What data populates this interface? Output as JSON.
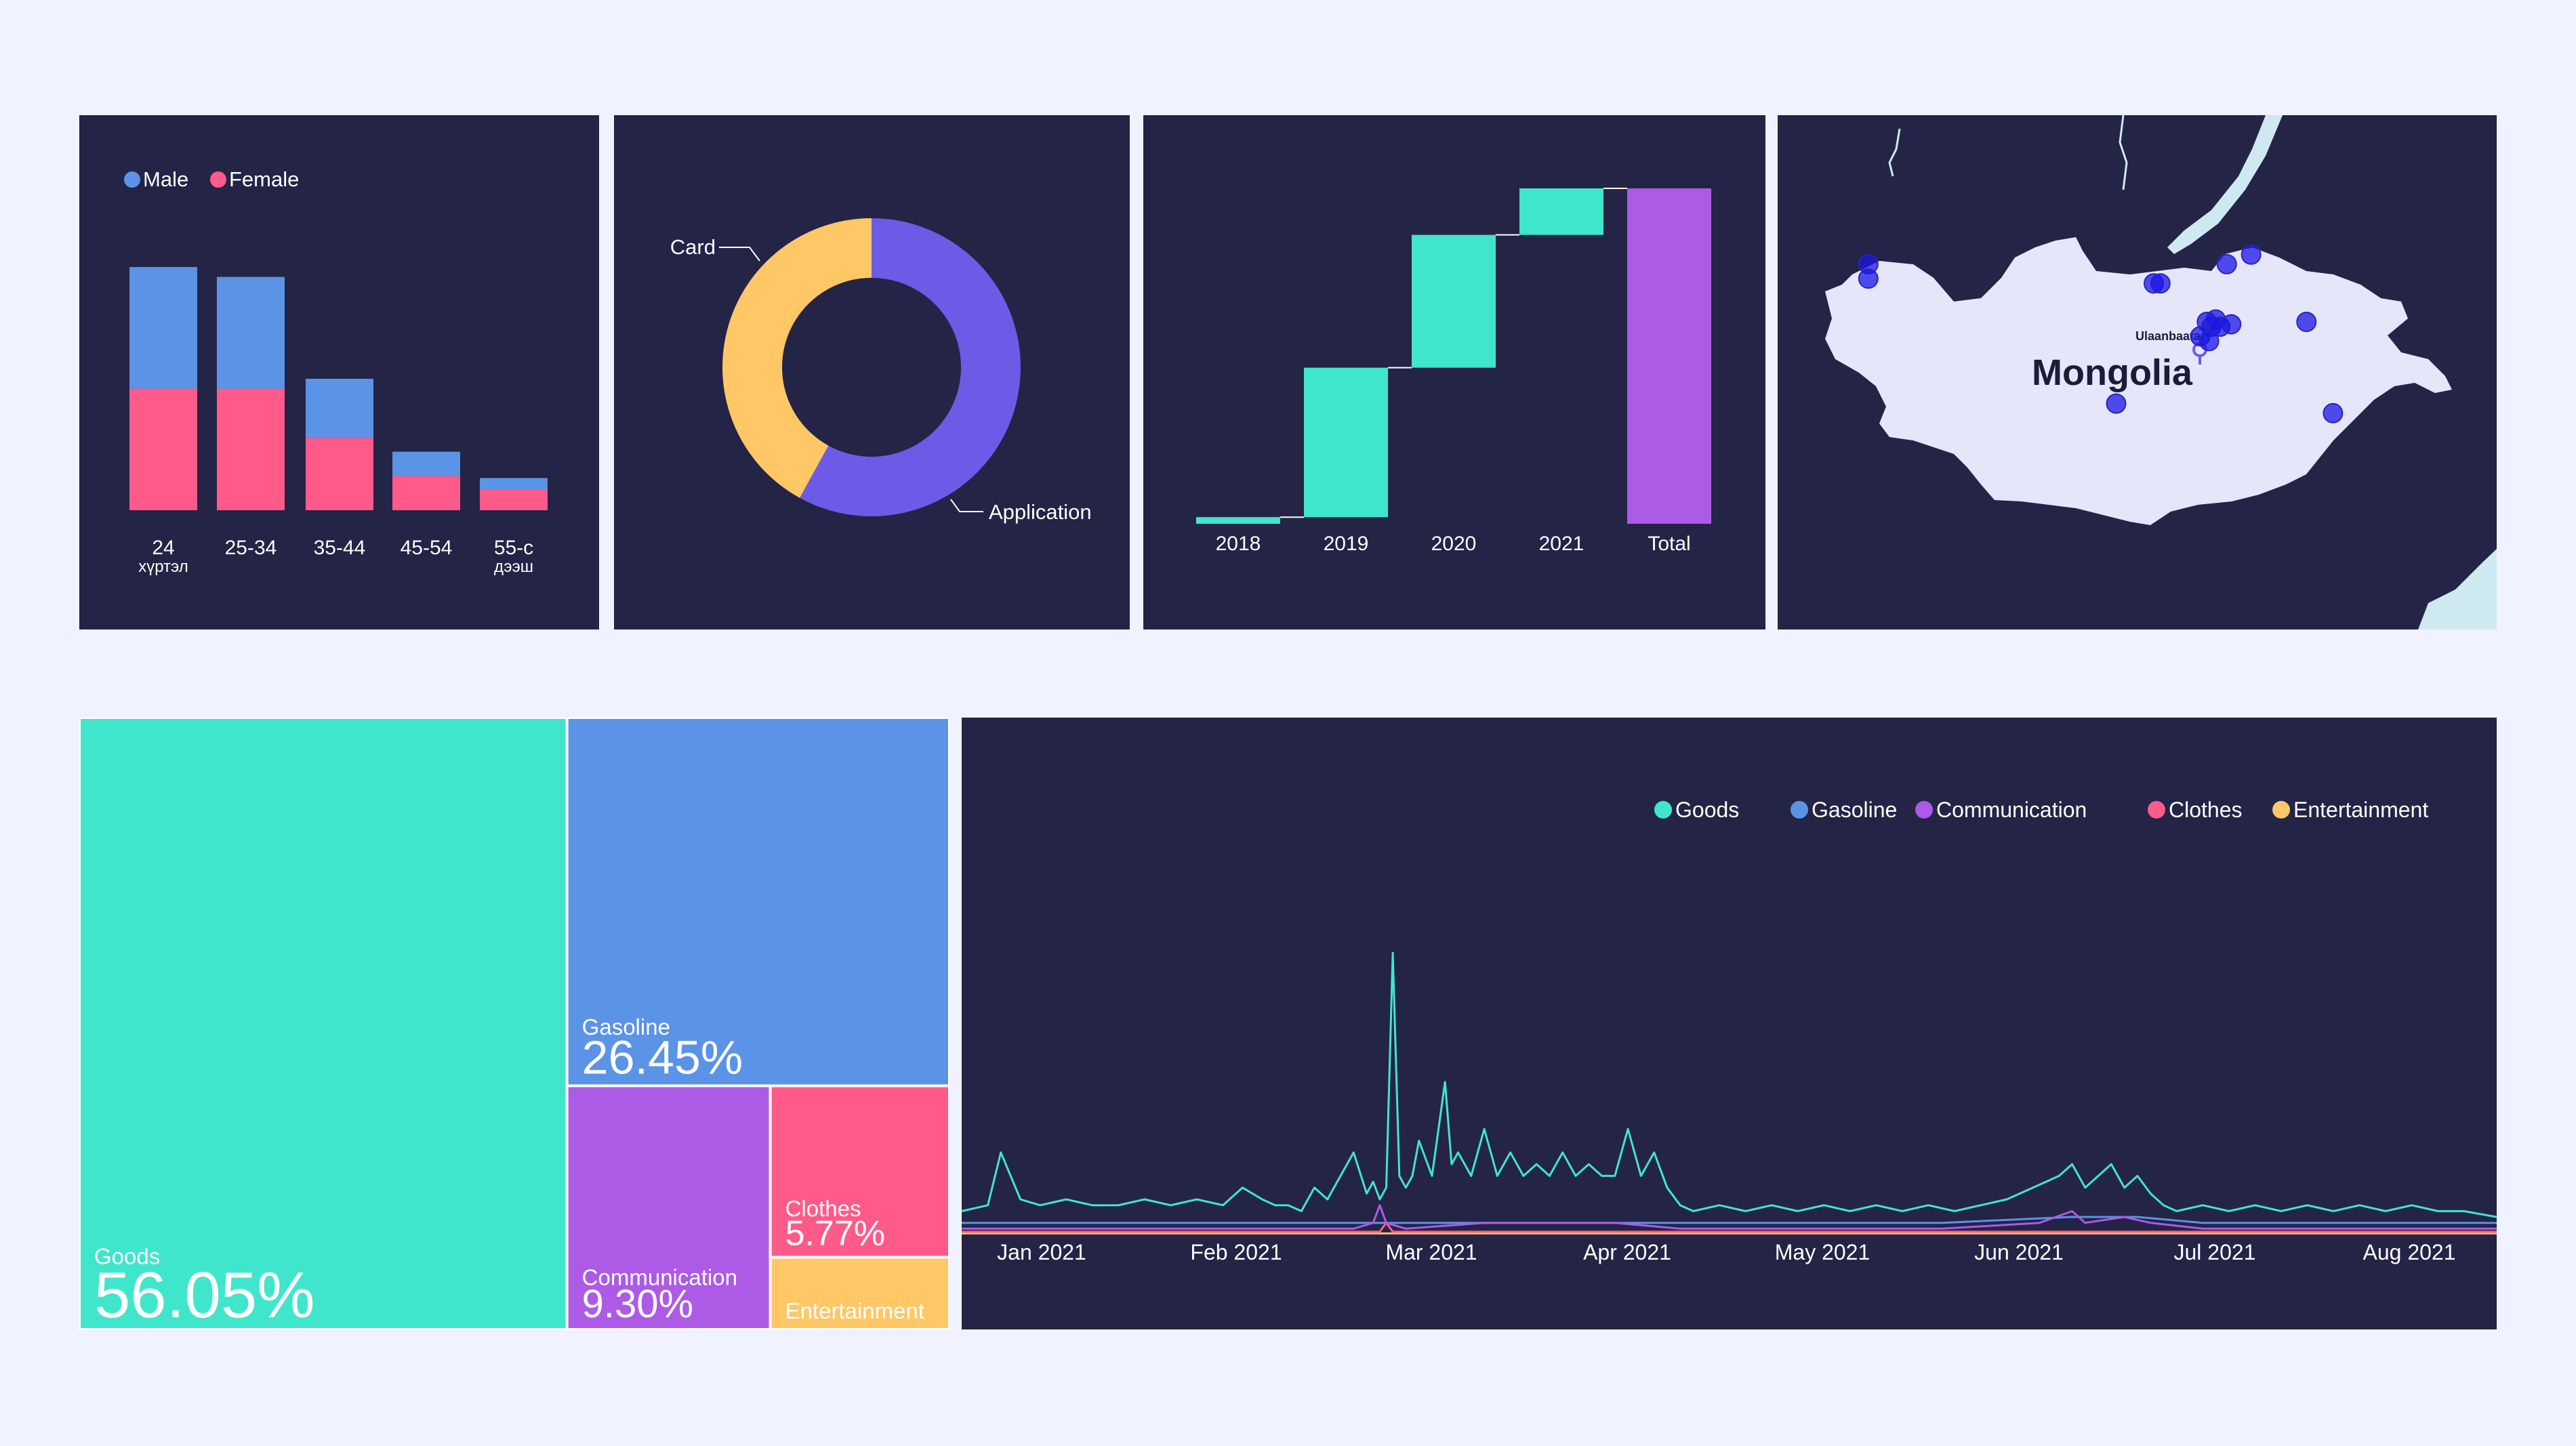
{
  "colors": {
    "panel_bg": "#242447",
    "page_bg": "#f0f2ff",
    "male": "#5b93e6",
    "female": "#ff5a8a",
    "card": "#ffc766",
    "application": "#6b5be6",
    "waterfall_increase": "#40e6cb",
    "waterfall_total": "#ad5ae6",
    "goods": "#40e6cb",
    "gasoline": "#5b93e6",
    "communication": "#ad5ae6",
    "clothes": "#ff5a8a",
    "entertainment": "#ffc766",
    "map_land": "#e3e3f8",
    "map_water": "#d0e8f0",
    "map_marker": "#1a14e6"
  },
  "chart_data": [
    {
      "type": "bar",
      "stacked": true,
      "legend_placement": "top-left",
      "categories": [
        "24 хүртэл",
        "25-34",
        "35-44",
        "45-54",
        "55-с дээш"
      ],
      "category_labels": [
        [
          "24",
          "хүртэл"
        ],
        [
          "25-34"
        ],
        [
          "35-44"
        ],
        [
          "45-54"
        ],
        [
          "55-с",
          "дээш"
        ]
      ],
      "series": [
        {
          "name": "Female",
          "values": [
            185,
            185,
            110,
            52,
            32
          ]
        },
        {
          "name": "Male",
          "values": [
            185,
            170,
            90,
            37,
            17
          ]
        }
      ],
      "legend": [
        "Male",
        "Female"
      ],
      "ylim": [
        0,
        400
      ],
      "grid": false
    },
    {
      "type": "pie",
      "donut": true,
      "labels": [
        "Application",
        "Card"
      ],
      "values": [
        58,
        42
      ],
      "label_text": {
        "application": "Application",
        "card": "Card"
      }
    },
    {
      "type": "bar",
      "subtype": "waterfall",
      "categories": [
        "2018",
        "2019",
        "2020",
        "2021",
        "Total"
      ],
      "values": [
        2,
        45,
        40,
        14,
        101
      ],
      "measure": [
        "relative",
        "relative",
        "relative",
        "relative",
        "total"
      ],
      "ylim": [
        0,
        105
      ],
      "grid": false
    },
    {
      "type": "scatter",
      "subtype": "map",
      "region_label": "Mongolia",
      "city_label": "Ulaanbaatar",
      "points": [
        {
          "lon": 91.6,
          "lat": 49.1
        },
        {
          "lon": 91.6,
          "lat": 48.8
        },
        {
          "lon": 104.5,
          "lat": 48.7
        },
        {
          "lon": 104.8,
          "lat": 48.7
        },
        {
          "lon": 107.8,
          "lat": 49.1
        },
        {
          "lon": 108.9,
          "lat": 49.3
        },
        {
          "lon": 106.9,
          "lat": 47.9
        },
        {
          "lon": 107.1,
          "lat": 47.8
        },
        {
          "lon": 107.3,
          "lat": 47.95
        },
        {
          "lon": 107.5,
          "lat": 47.8
        },
        {
          "lon": 106.6,
          "lat": 47.6
        },
        {
          "lon": 107.0,
          "lat": 47.5
        },
        {
          "lon": 108.0,
          "lat": 47.85
        },
        {
          "lon": 111.4,
          "lat": 47.9
        },
        {
          "lon": 102.8,
          "lat": 46.2
        },
        {
          "lon": 112.6,
          "lat": 46.0
        }
      ]
    },
    {
      "type": "heatmap",
      "subtype": "treemap",
      "labels": [
        "Goods",
        "Gasoline",
        "Communication",
        "Clothes",
        "Entertainment"
      ],
      "values": [
        56.05,
        26.45,
        9.3,
        5.77,
        2.43
      ],
      "value_labels": [
        "56.05%",
        "26.45%",
        "9.30%",
        "5.77%",
        ""
      ]
    },
    {
      "type": "line",
      "legend_placement": "top-right",
      "x_ticks": [
        "Jan 2021",
        "Feb 2021",
        "Mar 2021",
        "Apr 2021",
        "May 2021",
        "Jun 2021",
        "Jul 2021",
        "Aug 2021"
      ],
      "x_range_days": [
        0,
        235
      ],
      "ylim": [
        0,
        100
      ],
      "grid": false,
      "series": [
        {
          "name": "Goods",
          "points": [
            [
              0,
              4
            ],
            [
              4,
              5
            ],
            [
              6,
              14
            ],
            [
              9,
              6
            ],
            [
              12,
              5
            ],
            [
              16,
              6
            ],
            [
              20,
              5
            ],
            [
              24,
              5
            ],
            [
              28,
              6
            ],
            [
              32,
              5
            ],
            [
              36,
              6
            ],
            [
              40,
              5
            ],
            [
              43,
              8
            ],
            [
              46,
              6
            ],
            [
              48,
              5
            ],
            [
              50,
              5
            ],
            [
              52,
              4
            ],
            [
              54,
              8
            ],
            [
              56,
              6
            ],
            [
              58,
              10
            ],
            [
              60,
              14
            ],
            [
              62,
              7
            ],
            [
              63,
              9
            ],
            [
              64,
              6
            ],
            [
              65,
              8
            ],
            [
              66,
              48
            ],
            [
              67,
              10
            ],
            [
              68,
              8
            ],
            [
              69,
              10
            ],
            [
              70,
              16
            ],
            [
              72,
              10
            ],
            [
              74,
              26
            ],
            [
              75,
              12
            ],
            [
              76,
              14
            ],
            [
              78,
              10
            ],
            [
              80,
              18
            ],
            [
              82,
              10
            ],
            [
              84,
              14
            ],
            [
              86,
              10
            ],
            [
              88,
              12
            ],
            [
              90,
              10
            ],
            [
              92,
              14
            ],
            [
              94,
              10
            ],
            [
              96,
              12
            ],
            [
              98,
              10
            ],
            [
              100,
              10
            ],
            [
              102,
              18
            ],
            [
              104,
              10
            ],
            [
              106,
              14
            ],
            [
              108,
              8
            ],
            [
              110,
              5
            ],
            [
              112,
              4
            ],
            [
              116,
              5
            ],
            [
              120,
              4
            ],
            [
              124,
              5
            ],
            [
              128,
              4
            ],
            [
              132,
              5
            ],
            [
              136,
              4
            ],
            [
              140,
              5
            ],
            [
              144,
              4
            ],
            [
              148,
              5
            ],
            [
              152,
              4
            ],
            [
              156,
              5
            ],
            [
              160,
              6
            ],
            [
              164,
              8
            ],
            [
              168,
              10
            ],
            [
              170,
              12
            ],
            [
              172,
              8
            ],
            [
              174,
              10
            ],
            [
              176,
              12
            ],
            [
              178,
              8
            ],
            [
              180,
              10
            ],
            [
              182,
              7
            ],
            [
              184,
              5
            ],
            [
              186,
              4
            ],
            [
              190,
              5
            ],
            [
              194,
              4
            ],
            [
              198,
              5
            ],
            [
              202,
              4
            ],
            [
              206,
              5
            ],
            [
              210,
              4
            ],
            [
              214,
              5
            ],
            [
              218,
              4
            ],
            [
              222,
              5
            ],
            [
              226,
              4
            ],
            [
              230,
              4
            ],
            [
              235,
              3
            ]
          ]
        },
        {
          "name": "Gasoline",
          "points": [
            [
              0,
              2
            ],
            [
              20,
              2
            ],
            [
              40,
              2
            ],
            [
              60,
              2
            ],
            [
              64,
              2
            ],
            [
              65,
              2
            ],
            [
              70,
              2
            ],
            [
              90,
              2
            ],
            [
              110,
              2
            ],
            [
              130,
              2
            ],
            [
              150,
              2
            ],
            [
              170,
              3
            ],
            [
              180,
              3
            ],
            [
              190,
              2
            ],
            [
              210,
              2
            ],
            [
              235,
              2
            ]
          ]
        },
        {
          "name": "Communication",
          "points": [
            [
              0,
              1
            ],
            [
              20,
              1
            ],
            [
              40,
              1
            ],
            [
              60,
              1
            ],
            [
              63,
              2
            ],
            [
              64,
              5
            ],
            [
              65,
              2
            ],
            [
              68,
              1
            ],
            [
              80,
              2
            ],
            [
              90,
              2
            ],
            [
              100,
              2
            ],
            [
              110,
              1
            ],
            [
              130,
              1
            ],
            [
              150,
              1
            ],
            [
              165,
              2
            ],
            [
              170,
              4
            ],
            [
              172,
              2
            ],
            [
              178,
              3
            ],
            [
              182,
              2
            ],
            [
              190,
              1
            ],
            [
              210,
              1
            ],
            [
              235,
              1
            ]
          ]
        },
        {
          "name": "Clothes",
          "points": [
            [
              0,
              0.5
            ],
            [
              40,
              0.5
            ],
            [
              64,
              0.5
            ],
            [
              65,
              2
            ],
            [
              66,
              0.5
            ],
            [
              100,
              0.5
            ],
            [
              150,
              0.5
            ],
            [
              200,
              0.5
            ],
            [
              235,
              0.5
            ]
          ]
        },
        {
          "name": "Entertainment",
          "points": [
            [
              0,
              0.2
            ],
            [
              50,
              0.2
            ],
            [
              100,
              0.2
            ],
            [
              150,
              0.2
            ],
            [
              200,
              0.2
            ],
            [
              235,
              0.2
            ]
          ]
        }
      ]
    }
  ]
}
